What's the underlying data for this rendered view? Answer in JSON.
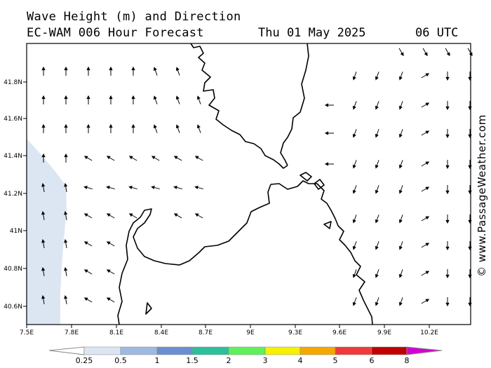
{
  "header": {
    "line1": "Wave Height (m) and Direction",
    "model": "EC-WAM 006 Hour Forecast",
    "date": "Thu 01 May 2025",
    "time": "06 UTC"
  },
  "credit": "© www.PassageWeather.com",
  "axes": {
    "x_ticks": [
      "7.5E",
      "7.8E",
      "8.1E",
      "8.4E",
      "8.7E",
      "9E",
      "9.3E",
      "9.6E",
      "9.9E",
      "10.2E"
    ],
    "y_ticks": [
      "41.8N",
      "41.6N",
      "41.4N",
      "41.2N",
      "41N",
      "40.8N",
      "40.6N"
    ]
  },
  "colorbar": {
    "labels": [
      "0.25",
      "0.5",
      "1",
      "1.5",
      "2",
      "3",
      "4",
      "5",
      "6",
      "8"
    ],
    "colors": [
      "#ffffff",
      "#dce6f3",
      "#9ebae0",
      "#6a8fd0",
      "#2cc09a",
      "#5ff05a",
      "#f7f000",
      "#f5a800",
      "#f03a3a",
      "#c00000",
      "#d400d4"
    ]
  },
  "wave_field": {
    "dominant_height_range": "below 0.25 m",
    "shaded_band": "0.25-0.5 m along west edge",
    "coast_color": "#000000"
  }
}
